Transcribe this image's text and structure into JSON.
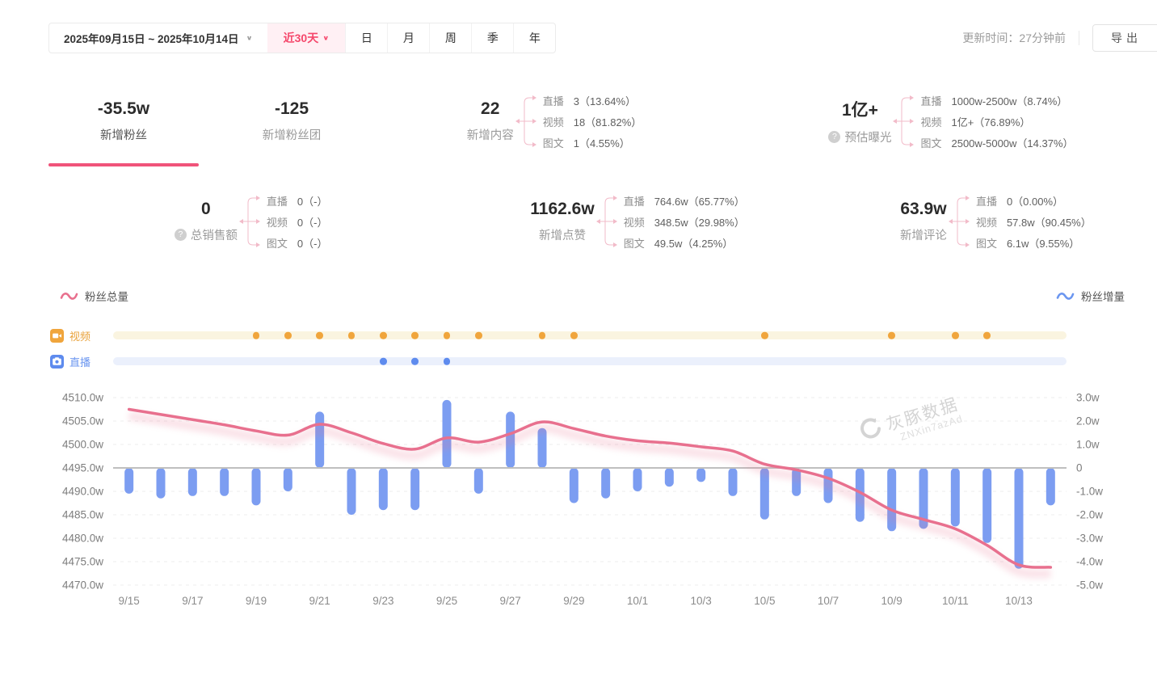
{
  "toolbar": {
    "date_range": "2025年09月15日 ~ 2025年10月14日",
    "quick_range": "近30天",
    "period_tabs": [
      {
        "key": "day",
        "label": "日"
      },
      {
        "key": "month",
        "label": "月"
      },
      {
        "key": "week",
        "label": "周"
      },
      {
        "key": "season",
        "label": "季"
      },
      {
        "key": "year",
        "label": "年"
      }
    ],
    "updated_text": "更新时间：27分钟前",
    "export_label": "导出"
  },
  "stats": {
    "row1": [
      {
        "key": "new-followers",
        "value": "-35.5w",
        "label": "新增粉丝",
        "selected": true
      },
      {
        "key": "new-fans-club",
        "value": "-125",
        "label": "新增粉丝团"
      },
      {
        "key": "new-content",
        "value": "22",
        "label": "新增内容",
        "breakdown": [
          {
            "name": "直播",
            "value": "3（13.64%）"
          },
          {
            "name": "视频",
            "value": "18（81.82%）"
          },
          {
            "name": "图文",
            "value": "1（4.55%）"
          }
        ]
      },
      {
        "key": "est-exposure",
        "value": "1亿+",
        "label": "预估曝光",
        "help": true,
        "breakdown": [
          {
            "name": "直播",
            "value": "1000w-2500w（8.74%）"
          },
          {
            "name": "视频",
            "value": "1亿+（76.89%）"
          },
          {
            "name": "图文",
            "value": "2500w-5000w（14.37%）"
          }
        ]
      }
    ],
    "row2": [
      {
        "key": "total-sales",
        "value": "0",
        "label": "总销售额",
        "help": true,
        "breakdown": [
          {
            "name": "直播",
            "value": "0（-）"
          },
          {
            "name": "视频",
            "value": "0（-）"
          },
          {
            "name": "图文",
            "value": "0（-）"
          }
        ]
      },
      {
        "key": "new-likes",
        "value": "1162.6w",
        "label": "新增点赞",
        "breakdown": [
          {
            "name": "直播",
            "value": "764.6w（65.77%）"
          },
          {
            "name": "视频",
            "value": "348.5w（29.98%）"
          },
          {
            "name": "图文",
            "value": "49.5w（4.25%）"
          }
        ]
      },
      {
        "key": "new-comments",
        "value": "63.9w",
        "label": "新增评论",
        "breakdown": [
          {
            "name": "直播",
            "value": "0（0.00%）"
          },
          {
            "name": "视频",
            "value": "57.8w（90.45%）"
          },
          {
            "name": "图文",
            "value": "6.1w（9.55%）"
          }
        ]
      }
    ]
  },
  "legend": {
    "left": {
      "label": "粉丝总量",
      "color": "#E8708E"
    },
    "right": {
      "label": "粉丝增量",
      "color": "#6B96F0"
    }
  },
  "timeline": {
    "video": {
      "label": "视频",
      "dot_color": "#F0A53C",
      "track_color": "#FAF4E0",
      "label_color": "#E9A23B",
      "days": [
        "9/19",
        "9/20",
        "9/21",
        "9/22",
        "9/23",
        "9/24",
        "9/25",
        "9/26",
        "9/28",
        "9/29",
        "10/5",
        "10/9",
        "10/11",
        "10/12"
      ]
    },
    "live": {
      "label": "直播",
      "dot_color": "#5E8BEE",
      "track_color": "#EBF0FC",
      "label_color": "#6B96F0",
      "days": [
        "9/23",
        "9/24",
        "9/25"
      ]
    }
  },
  "chart_data": {
    "type": "line+bar",
    "x": [
      "9/15",
      "9/16",
      "9/17",
      "9/18",
      "9/19",
      "9/20",
      "9/21",
      "9/22",
      "9/23",
      "9/24",
      "9/25",
      "9/26",
      "9/27",
      "9/28",
      "9/29",
      "9/30",
      "10/1",
      "10/2",
      "10/3",
      "10/4",
      "10/5",
      "10/6",
      "10/7",
      "10/8",
      "10/9",
      "10/10",
      "10/11",
      "10/12",
      "10/13",
      "10/14"
    ],
    "x_tick_labels": [
      "9/15",
      "9/17",
      "9/19",
      "9/21",
      "9/23",
      "9/25",
      "9/27",
      "9/29",
      "10/1",
      "10/3",
      "10/5",
      "10/7",
      "10/9",
      "10/11",
      "10/13"
    ],
    "series": [
      {
        "name": "粉丝总量",
        "type": "line",
        "axis": "left",
        "color": "#E8708E",
        "values": [
          4507.5,
          4506.4,
          4505.3,
          4504.2,
          4502.9,
          4502.0,
          4504.3,
          4502.5,
          4500.2,
          4499.0,
          4501.4,
          4500.5,
          4502.3,
          4504.8,
          4503.4,
          4501.8,
          4500.8,
          4500.3,
          4499.5,
          4498.6,
          4495.8,
          4494.6,
          4492.8,
          4489.8,
          4486.0,
          4484.0,
          4482.0,
          4478.5,
          4474.3,
          4473.8
        ]
      },
      {
        "name": "粉丝增量",
        "type": "bar",
        "axis": "right",
        "color": "#7C9DF1",
        "values": [
          -1.1,
          -1.3,
          -1.2,
          -1.2,
          -1.6,
          -1.0,
          2.4,
          -2.0,
          -1.8,
          -1.8,
          2.9,
          -1.1,
          2.4,
          1.7,
          -1.5,
          -1.3,
          -1.0,
          -0.8,
          -0.6,
          -1.2,
          -2.2,
          -1.2,
          -1.5,
          -2.3,
          -2.7,
          -2.6,
          -2.5,
          -3.2,
          -4.3,
          -1.6
        ]
      }
    ],
    "left_axis": {
      "min": 4470,
      "max": 4510,
      "step": 5,
      "unit": "w",
      "labels": [
        "4510.0w",
        "4505.0w",
        "4500.0w",
        "4495.0w",
        "4490.0w",
        "4485.0w",
        "4480.0w",
        "4475.0w",
        "4470.0w"
      ]
    },
    "right_axis": {
      "min": -5,
      "max": 3,
      "step": 1,
      "labels": [
        "3.0w",
        "2.0w",
        "1.0w",
        "0",
        "-1.0w",
        "-2.0w",
        "-3.0w",
        "-4.0w",
        "-5.0w"
      ]
    },
    "grid": "dashed",
    "zero_line": true
  },
  "watermark": {
    "brand": "灰豚数据",
    "code": "ZNXin7azAd"
  }
}
